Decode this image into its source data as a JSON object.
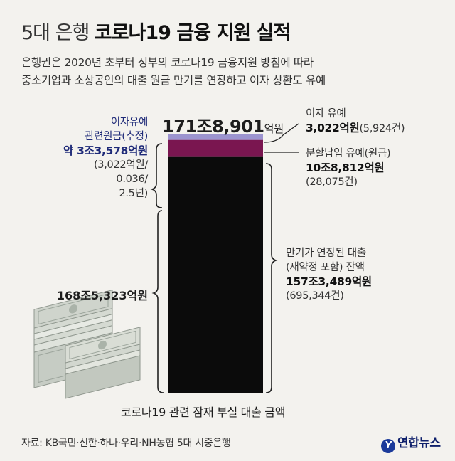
{
  "header": {
    "title_light": "5대 은행",
    "title_bold": "코로나19 금융 지원 실적",
    "desc_line1": "은행권은 2020년 초부터 정부의 코로나19 금융지원 방침에 따라",
    "desc_line2": "중소기업과 소상공인의 대출 원금 만기를 연장하고 이자 상환도 유예"
  },
  "chart_data": {
    "type": "bar",
    "stacked": true,
    "xlabel": "코로나19 관련 잠재 부실 대출 금액",
    "total_label_num": "171조8,901",
    "total_label_unit": "억원",
    "total": 1718901,
    "unit": "억원",
    "series": [
      {
        "key": "maturity",
        "value": 1573489,
        "color": "#0b0b0b"
      },
      {
        "key": "principal",
        "value": 108812,
        "color": "#7a1650"
      },
      {
        "key": "interest",
        "value": 3022,
        "color": "#9c94cf"
      }
    ],
    "annotations": {
      "interest": {
        "line1": "이자 유예",
        "amount": "3,022억원",
        "count": "(5,924건)"
      },
      "principal": {
        "line1": "분할납입 유예(원금)",
        "amount": "10조8,812억원",
        "count": "(28,075건)"
      },
      "maturity": {
        "line1": "만기가 연장된 대출",
        "line2": "(재약정 포함) 잔액",
        "amount": "157조3,489억원",
        "count": "(695,344건)"
      },
      "left_top": {
        "line1": "이자유예",
        "line2": "관련원금(추정)",
        "amount": "약 3조3,578억원",
        "calc1": "(3,022억원/",
        "calc2": "0.036/",
        "calc3": "2.5년)"
      },
      "left_bottom": {
        "amount": "168조5,323억원"
      }
    }
  },
  "icons": {
    "money": "money-stack-icon",
    "logo": "yonhap-logo-icon"
  },
  "footer": {
    "source": "자료: KB국민·신한·하나·우리·NH농협 5대 시중은행",
    "logo_text": "연합뉴스"
  }
}
